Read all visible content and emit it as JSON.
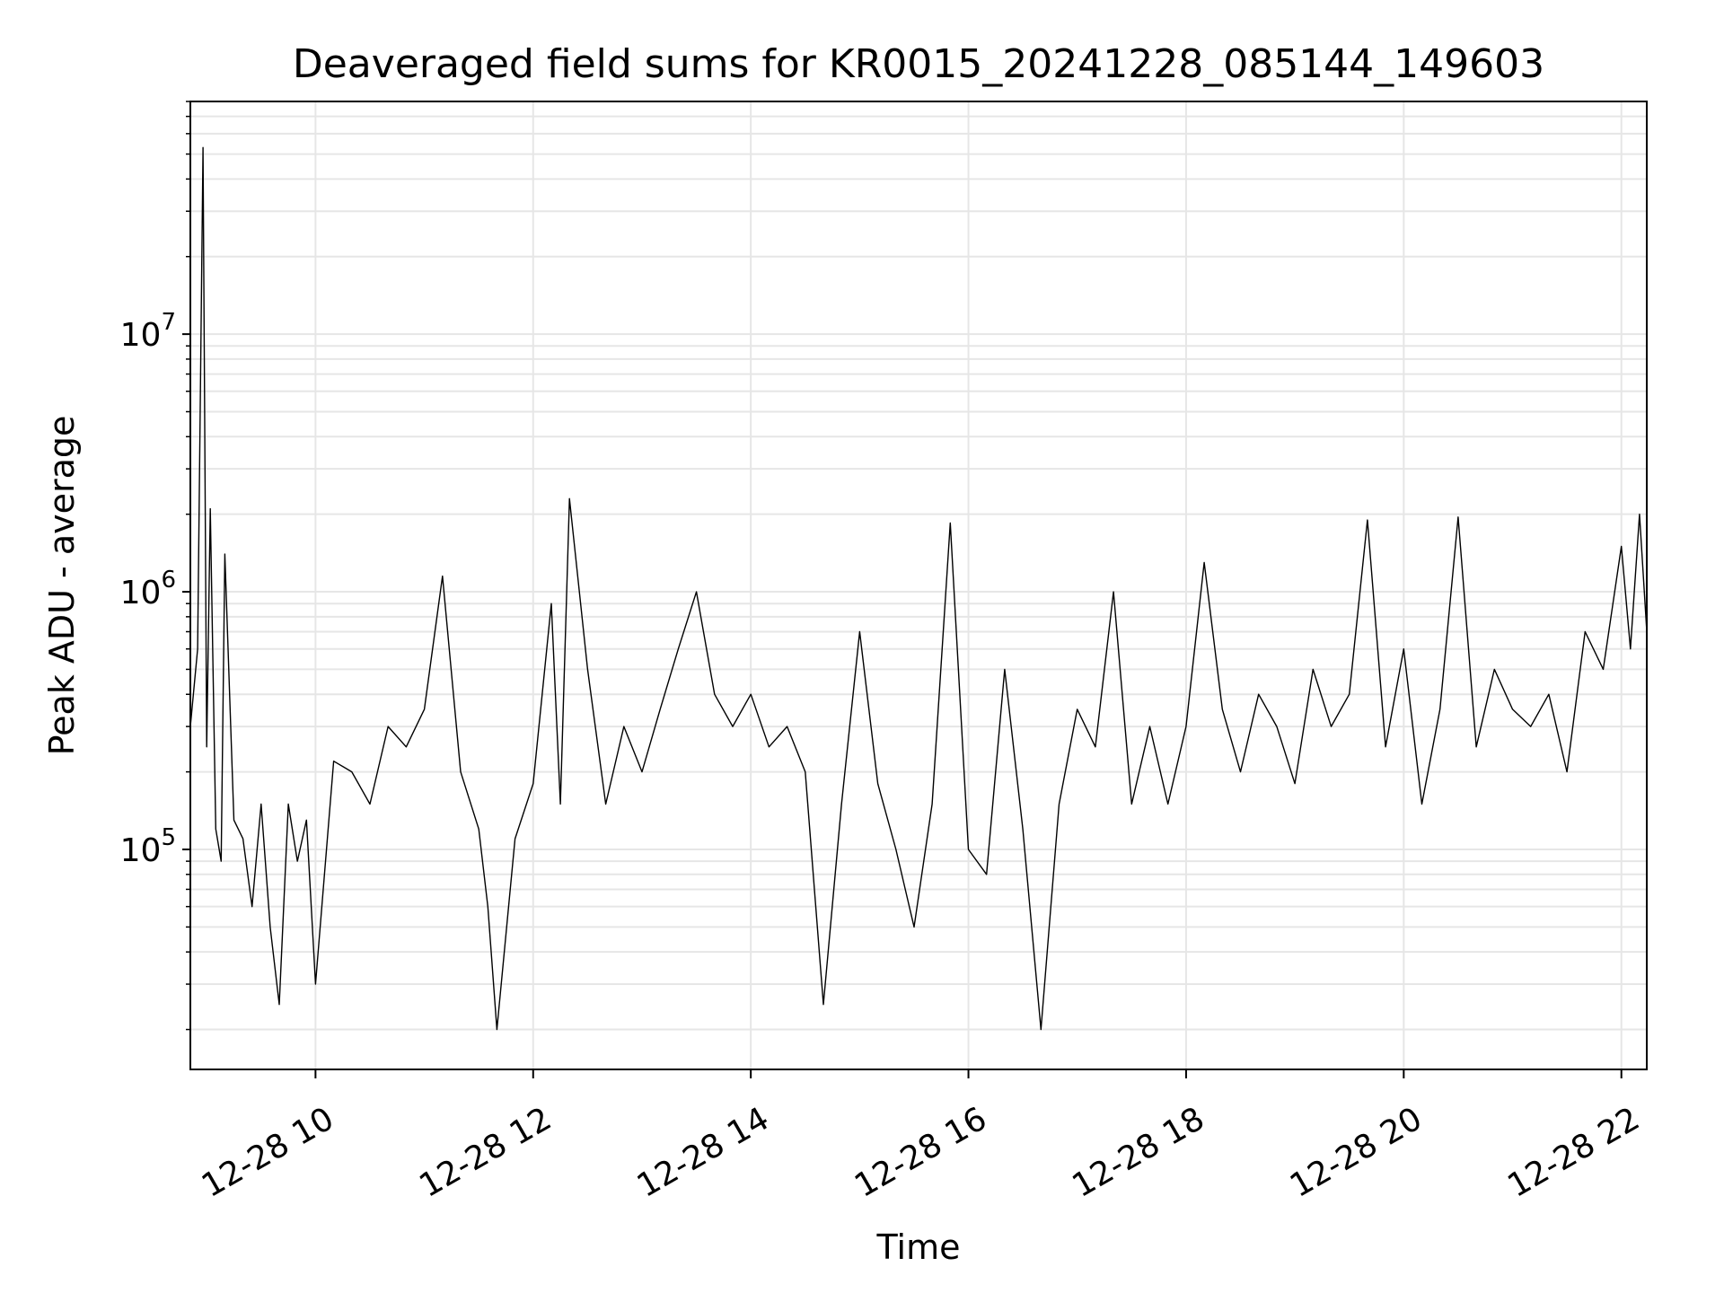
{
  "chart_data": {
    "type": "line",
    "title": "Deaveraged field sums for KR0015_20241228_085144_149603",
    "xlabel": "Time",
    "ylabel": "Peak ADU - average",
    "yscale": "log",
    "ylim": [
      14000,
      80000000
    ],
    "ytick_major": [
      {
        "value": 100000,
        "base": "10",
        "exp": "5"
      },
      {
        "value": 1000000,
        "base": "10",
        "exp": "6"
      },
      {
        "value": 10000000,
        "base": "10",
        "exp": "7"
      }
    ],
    "xlim": [
      "12-28 08:51",
      "12-28 22:14"
    ],
    "xticks": [
      {
        "value": "12-28 10:00",
        "label": "12-28 10"
      },
      {
        "value": "12-28 12:00",
        "label": "12-28 12"
      },
      {
        "value": "12-28 14:00",
        "label": "12-28 14"
      },
      {
        "value": "12-28 16:00",
        "label": "12-28 16"
      },
      {
        "value": "12-28 18:00",
        "label": "12-28 18"
      },
      {
        "value": "12-28 20:00",
        "label": "12-28 20"
      },
      {
        "value": "12-28 22:00",
        "label": "12-28 22"
      }
    ],
    "grid": true,
    "line_color": "#000000",
    "grid_color": "#e6e6e6",
    "series": [
      {
        "x": [
          "12-28 08:51",
          "12-28 08:55",
          "12-28 08:58",
          "12-28 09:00",
          "12-28 09:02",
          "12-28 09:05",
          "12-28 09:08",
          "12-28 09:10",
          "12-28 09:15",
          "12-28 09:20",
          "12-28 09:25",
          "12-28 09:30",
          "12-28 09:35",
          "12-28 09:40",
          "12-28 09:45",
          "12-28 09:50",
          "12-28 09:55",
          "12-28 10:00",
          "12-28 10:10",
          "12-28 10:20",
          "12-28 10:30",
          "12-28 10:40",
          "12-28 10:50",
          "12-28 11:00",
          "12-28 11:10",
          "12-28 11:20",
          "12-28 11:30",
          "12-28 11:35",
          "12-28 11:40",
          "12-28 11:50",
          "12-28 12:00",
          "12-28 12:10",
          "12-28 12:15",
          "12-28 12:20",
          "12-28 12:30",
          "12-28 12:40",
          "12-28 12:50",
          "12-28 13:00",
          "12-28 13:10",
          "12-28 13:20",
          "12-28 13:30",
          "12-28 13:40",
          "12-28 13:50",
          "12-28 14:00",
          "12-28 14:10",
          "12-28 14:20",
          "12-28 14:30",
          "12-28 14:40",
          "12-28 14:50",
          "12-28 15:00",
          "12-28 15:10",
          "12-28 15:20",
          "12-28 15:30",
          "12-28 15:40",
          "12-28 15:50",
          "12-28 16:00",
          "12-28 16:10",
          "12-28 16:20",
          "12-28 16:30",
          "12-28 16:40",
          "12-28 16:50",
          "12-28 17:00",
          "12-28 17:10",
          "12-28 17:20",
          "12-28 17:30",
          "12-28 17:40",
          "12-28 17:50",
          "12-28 18:00",
          "12-28 18:10",
          "12-28 18:20",
          "12-28 18:30",
          "12-28 18:40",
          "12-28 18:50",
          "12-28 19:00",
          "12-28 19:10",
          "12-28 19:20",
          "12-28 19:30",
          "12-28 19:40",
          "12-28 19:50",
          "12-28 20:00",
          "12-28 20:10",
          "12-28 20:20",
          "12-28 20:30",
          "12-28 20:40",
          "12-28 20:50",
          "12-28 21:00",
          "12-28 21:10",
          "12-28 21:20",
          "12-28 21:30",
          "12-28 21:40",
          "12-28 21:50",
          "12-28 22:00",
          "12-28 22:05",
          "12-28 22:10",
          "12-28 22:14"
        ],
        "y": [
          300000,
          600000,
          53000000,
          250000,
          2100000,
          120000,
          90000,
          1400000,
          130000,
          110000,
          60000,
          150000,
          50000,
          25000,
          150000,
          90000,
          130000,
          30000,
          220000,
          200000,
          150000,
          300000,
          250000,
          350000,
          1150000,
          200000,
          120000,
          60000,
          20000,
          110000,
          180000,
          900000,
          150000,
          2300000,
          500000,
          150000,
          300000,
          200000,
          350000,
          600000,
          1000000,
          400000,
          300000,
          400000,
          250000,
          300000,
          200000,
          25000,
          150000,
          700000,
          180000,
          100000,
          50000,
          150000,
          1850000,
          100000,
          80000,
          500000,
          120000,
          20000,
          150000,
          350000,
          250000,
          1000000,
          150000,
          300000,
          150000,
          300000,
          1300000,
          350000,
          200000,
          400000,
          300000,
          180000,
          500000,
          300000,
          400000,
          1900000,
          250000,
          600000,
          150000,
          350000,
          1950000,
          250000,
          500000,
          350000,
          300000,
          400000,
          200000,
          700000,
          500000,
          1500000,
          600000,
          2000000,
          700000
        ]
      }
    ]
  }
}
